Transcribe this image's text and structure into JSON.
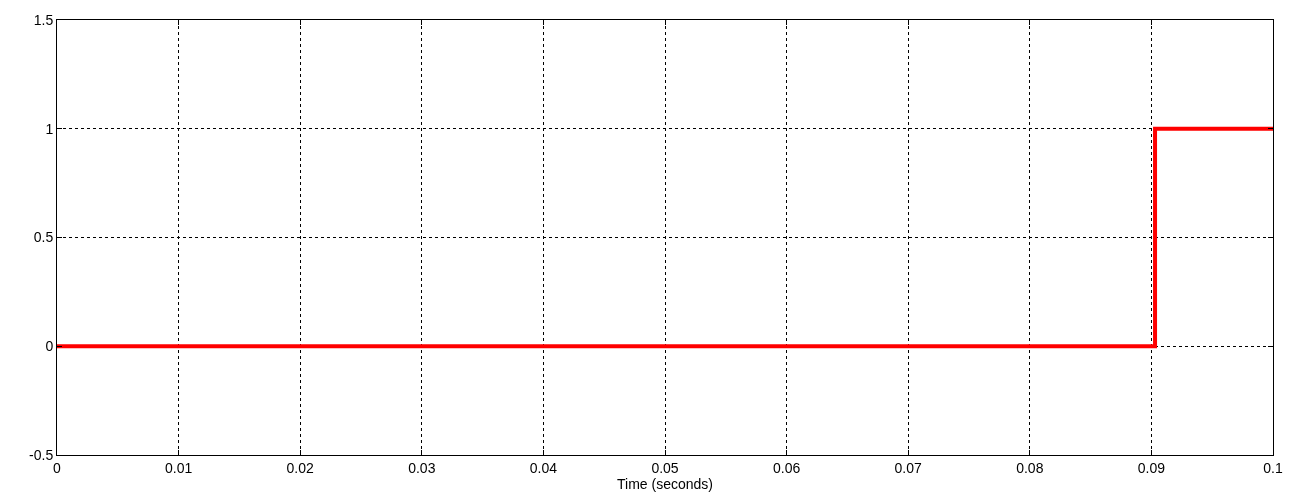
{
  "chart_data": {
    "type": "step",
    "xlabel": "Time (seconds)",
    "x": [
      0,
      0.0903,
      0.1
    ],
    "series": [
      {
        "color": "#ff0000",
        "values": [
          0,
          1,
          1
        ]
      }
    ],
    "xlim": [
      0,
      0.1
    ],
    "xticks": [
      0,
      0.01,
      0.02,
      0.03,
      0.04,
      0.05,
      0.06,
      0.07,
      0.08,
      0.09,
      0.1
    ],
    "ylim": [
      -0.5,
      1.5
    ],
    "yticks": [
      -0.5,
      0,
      0.5,
      1,
      1.5
    ],
    "grid": true,
    "line_style": "solid",
    "marker": "none"
  }
}
